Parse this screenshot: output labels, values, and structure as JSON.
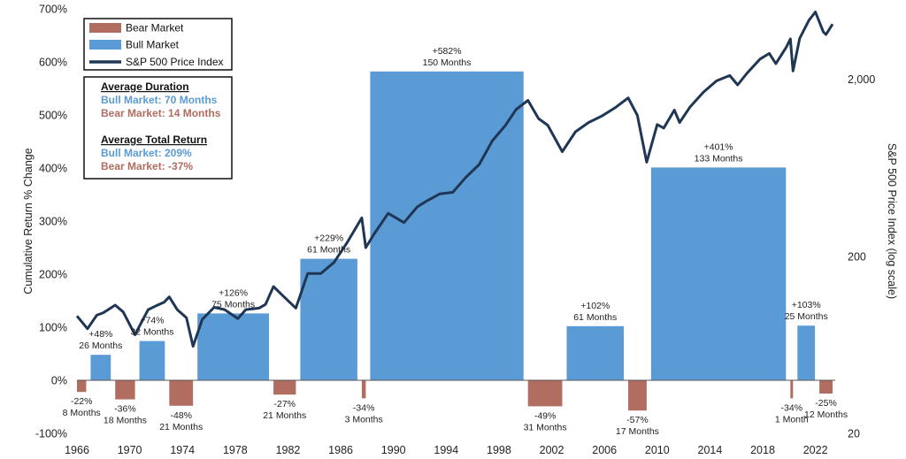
{
  "chart_data": {
    "type": "bar",
    "title": "",
    "ylabel": "Cumulative Return % Change",
    "y2label": "S&P 500 Price Index (log scale)",
    "ylim": [
      -100,
      700
    ],
    "yticks": [
      "700%",
      "600%",
      "500%",
      "400%",
      "300%",
      "200%",
      "100%",
      "0%",
      "-100%"
    ],
    "y2ticks": [
      "2,000",
      "200",
      "20"
    ],
    "xlim": [
      1966,
      2023.5
    ],
    "xticks": [
      "1966",
      "1970",
      "1974",
      "1978",
      "1982",
      "1986",
      "1990",
      "1994",
      "1998",
      "2002",
      "2006",
      "2010",
      "2014",
      "2018",
      "2022"
    ],
    "colors": {
      "bull": "#5b9bd5",
      "bear": "#b06d60",
      "line": "#1f3654"
    },
    "legend": {
      "items": [
        {
          "key": "bear",
          "label": "Bear Market"
        },
        {
          "key": "bull",
          "label": "Bull Market"
        },
        {
          "key": "line",
          "label": "S&P 500 Price Index"
        }
      ]
    },
    "stats": {
      "duration_heading": "Average Duration",
      "bull_duration": "Bull Market: 70 Months",
      "bear_duration": "Bear Market: 14 Months",
      "return_heading": "Average Total Return",
      "bull_return": "Bull Market:  209%",
      "bear_return": "Bear Market: -37%"
    },
    "markets": [
      {
        "type": "bear",
        "start": 1966.0,
        "end": 1966.7,
        "value": -22,
        "pct": "-22%",
        "months": "8 Months"
      },
      {
        "type": "bull",
        "start": 1966.7,
        "end": 1968.9,
        "value": 48,
        "pct": "+48%",
        "months": "26 Months"
      },
      {
        "type": "bear",
        "start": 1968.9,
        "end": 1970.4,
        "value": -36,
        "pct": "-36%",
        "months": "18 Months"
      },
      {
        "type": "bull",
        "start": 1970.4,
        "end": 1973.0,
        "value": 74,
        "pct": "+74%",
        "months": "32 Months"
      },
      {
        "type": "bear",
        "start": 1973.0,
        "end": 1974.8,
        "value": -48,
        "pct": "-48%",
        "months": "21 Months"
      },
      {
        "type": "bull",
        "start": 1974.8,
        "end": 1980.9,
        "value": 126,
        "pct": "+126%",
        "months": "75 Months"
      },
      {
        "type": "bear",
        "start": 1980.9,
        "end": 1982.6,
        "value": -27,
        "pct": "-27%",
        "months": "21 Months"
      },
      {
        "type": "bull",
        "start": 1982.6,
        "end": 1987.6,
        "value": 229,
        "pct": "+229%",
        "months": "61 Months"
      },
      {
        "type": "bear",
        "start": 1987.6,
        "end": 1987.9,
        "value": -34,
        "pct": "-34%",
        "months": "3 Months"
      },
      {
        "type": "bull",
        "start": 1987.9,
        "end": 2000.2,
        "value": 582,
        "pct": "+582%",
        "months": "150 Months"
      },
      {
        "type": "bear",
        "start": 2000.2,
        "end": 2002.8,
        "value": -49,
        "pct": "-49%",
        "months": "31 Months"
      },
      {
        "type": "bull",
        "start": 2002.8,
        "end": 2007.8,
        "value": 102,
        "pct": "+102%",
        "months": "61 Months"
      },
      {
        "type": "bear",
        "start": 2007.8,
        "end": 2009.2,
        "value": -57,
        "pct": "-57%",
        "months": "17 Months"
      },
      {
        "type": "bull",
        "start": 2009.2,
        "end": 2020.1,
        "value": 401,
        "pct": "+401%",
        "months": "133 Months"
      },
      {
        "type": "bear",
        "start": 2020.1,
        "end": 2020.3,
        "value": -34,
        "pct": "-34%",
        "months": "1 Month"
      },
      {
        "type": "bull",
        "start": 2020.3,
        "end": 2022.3,
        "value": 103,
        "pct": "+103%",
        "months": "25 Months"
      },
      {
        "type": "bear",
        "start": 2022.3,
        "end": 2023.3,
        "value": -25,
        "pct": "-25%",
        "months": "12 Months"
      }
    ],
    "sp500": {
      "name": "S&P 500 Price Index",
      "scale": "log",
      "ylim": [
        20,
        5000
      ],
      "x": [
        1966.0,
        1966.8,
        1967.5,
        1968.0,
        1968.9,
        1969.5,
        1970.4,
        1970.9,
        1971.4,
        1972.0,
        1972.6,
        1973.0,
        1973.6,
        1974.3,
        1974.8,
        1975.5,
        1976.4,
        1977.2,
        1978.2,
        1978.8,
        1979.8,
        1980.3,
        1980.9,
        1981.6,
        1982.6,
        1983.5,
        1984.5,
        1985.5,
        1986.5,
        1987.6,
        1987.9,
        1988.5,
        1989.6,
        1990.8,
        1991.8,
        1992.5,
        1993.5,
        1994.5,
        1995.5,
        1996.5,
        1997.5,
        1998.5,
        1999.3,
        2000.2,
        2001.0,
        2001.7,
        2002.8,
        2003.8,
        2004.8,
        2005.8,
        2006.8,
        2007.8,
        2008.5,
        2009.2,
        2010.0,
        2010.5,
        2011.3,
        2011.7,
        2012.5,
        2013.5,
        2014.5,
        2015.5,
        2016.1,
        2016.8,
        2017.8,
        2018.5,
        2019.0,
        2019.8,
        2020.1,
        2020.3,
        2020.8,
        2021.5,
        2022.0,
        2022.6,
        2022.8,
        2023.3
      ],
      "y": [
        92,
        78,
        93,
        96,
        106,
        97,
        72,
        85,
        100,
        105,
        110,
        118,
        100,
        90,
        62,
        88,
        103,
        100,
        89,
        100,
        102,
        107,
        135,
        120,
        102,
        160,
        160,
        185,
        240,
        330,
        224,
        265,
        350,
        310,
        380,
        410,
        450,
        460,
        560,
        660,
        900,
        1100,
        1350,
        1520,
        1200,
        1100,
        780,
        1010,
        1140,
        1240,
        1380,
        1570,
        1250,
        680,
        1110,
        1060,
        1340,
        1140,
        1400,
        1690,
        1960,
        2100,
        1860,
        2160,
        2600,
        2800,
        2450,
        3050,
        3380,
        2230,
        3400,
        4300,
        4800,
        3700,
        3580,
        4100
      ]
    }
  }
}
